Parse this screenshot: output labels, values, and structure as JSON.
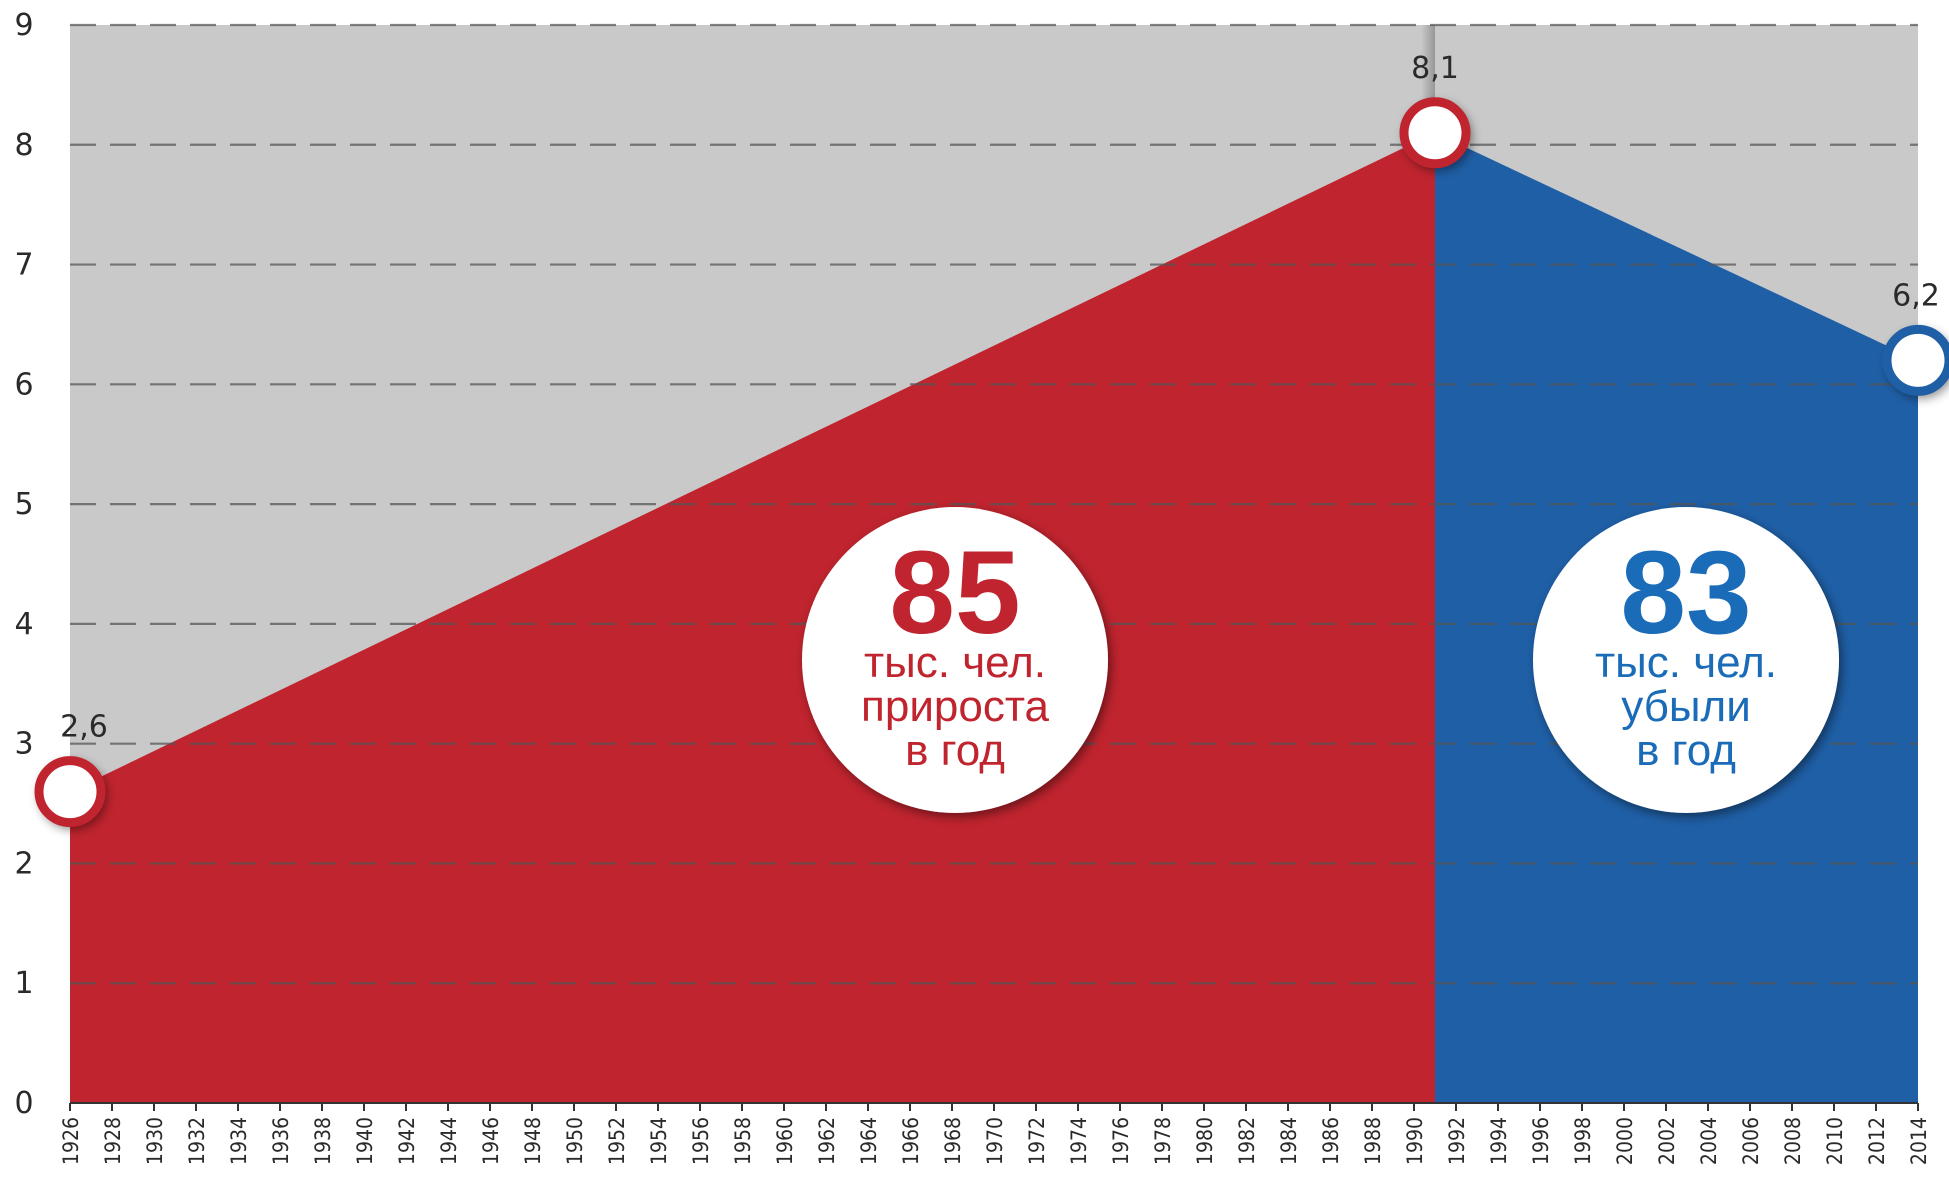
{
  "chart_data": {
    "type": "area",
    "title": "",
    "xlabel": "",
    "ylabel": "",
    "x_range": [
      1926,
      2014
    ],
    "ylim": [
      0,
      9
    ],
    "y_ticks": [
      "0",
      "1",
      "2",
      "3",
      "4",
      "5",
      "6",
      "7",
      "8",
      "9"
    ],
    "x_ticks": [
      "1926",
      "1928",
      "1930",
      "1932",
      "1934",
      "1936",
      "1938",
      "1940",
      "1942",
      "1944",
      "1946",
      "1948",
      "1950",
      "1952",
      "1954",
      "1956",
      "1958",
      "1960",
      "1962",
      "1964",
      "1966",
      "1968",
      "1970",
      "1972",
      "1974",
      "1976",
      "1978",
      "1980",
      "1982",
      "1984",
      "1986",
      "1988",
      "1990",
      "1992",
      "1994",
      "1996",
      "1998",
      "2000",
      "2002",
      "2004",
      "2006",
      "2008",
      "2010",
      "2012",
      "2014"
    ],
    "grid": true,
    "series": [
      {
        "color": "#c0242e",
        "points": [
          {
            "x": 1926,
            "y": 2.6,
            "label": "2,6"
          },
          {
            "x": 1991,
            "y": 8.1,
            "label": "8,1"
          }
        ]
      },
      {
        "color": "#1f5fa6",
        "points": [
          {
            "x": 1991,
            "y": 8.1
          },
          {
            "x": 2014,
            "y": 6.2,
            "label": "6,2"
          }
        ]
      }
    ],
    "annotations": [
      {
        "number": "85",
        "lines": [
          "тыс. чел.",
          "прироста",
          "в год"
        ],
        "color": "#c0242e"
      },
      {
        "number": "83",
        "lines": [
          "тыс. чел.",
          "убыли",
          "в год"
        ],
        "color": "#1a6bb8"
      }
    ],
    "colors": {
      "background": "#c9c9c9",
      "grid": "#555555",
      "growth": "#c0242e",
      "decline": "#1f5fa6",
      "decline_number": "#1a6bb8"
    }
  }
}
